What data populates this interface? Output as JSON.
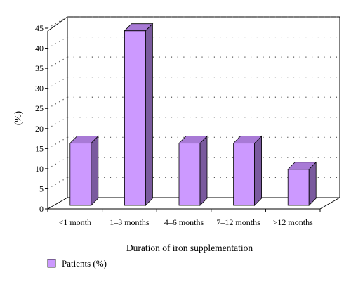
{
  "chart_data": {
    "type": "bar",
    "categories": [
      "<1 month",
      "1–3 months",
      "4–6 months",
      "7–12 months",
      ">12 months"
    ],
    "series": [
      {
        "name": "Patients (%)",
        "values": [
          16,
          44,
          16,
          16,
          9.5
        ]
      }
    ],
    "xlabel": "Duration of iron supplementation",
    "ylabel": "(%)",
    "ylim": [
      0,
      45
    ],
    "yticks": [
      0,
      5,
      10,
      15,
      20,
      25,
      30,
      35,
      40,
      45
    ],
    "grid": true,
    "legend_position": "bottom-left",
    "colors": {
      "bar_front": "#cc99ff",
      "bar_side": "#7a5a9e",
      "bar_top": "#a87ad6",
      "grid": "#555555",
      "axis": "#000000"
    }
  }
}
